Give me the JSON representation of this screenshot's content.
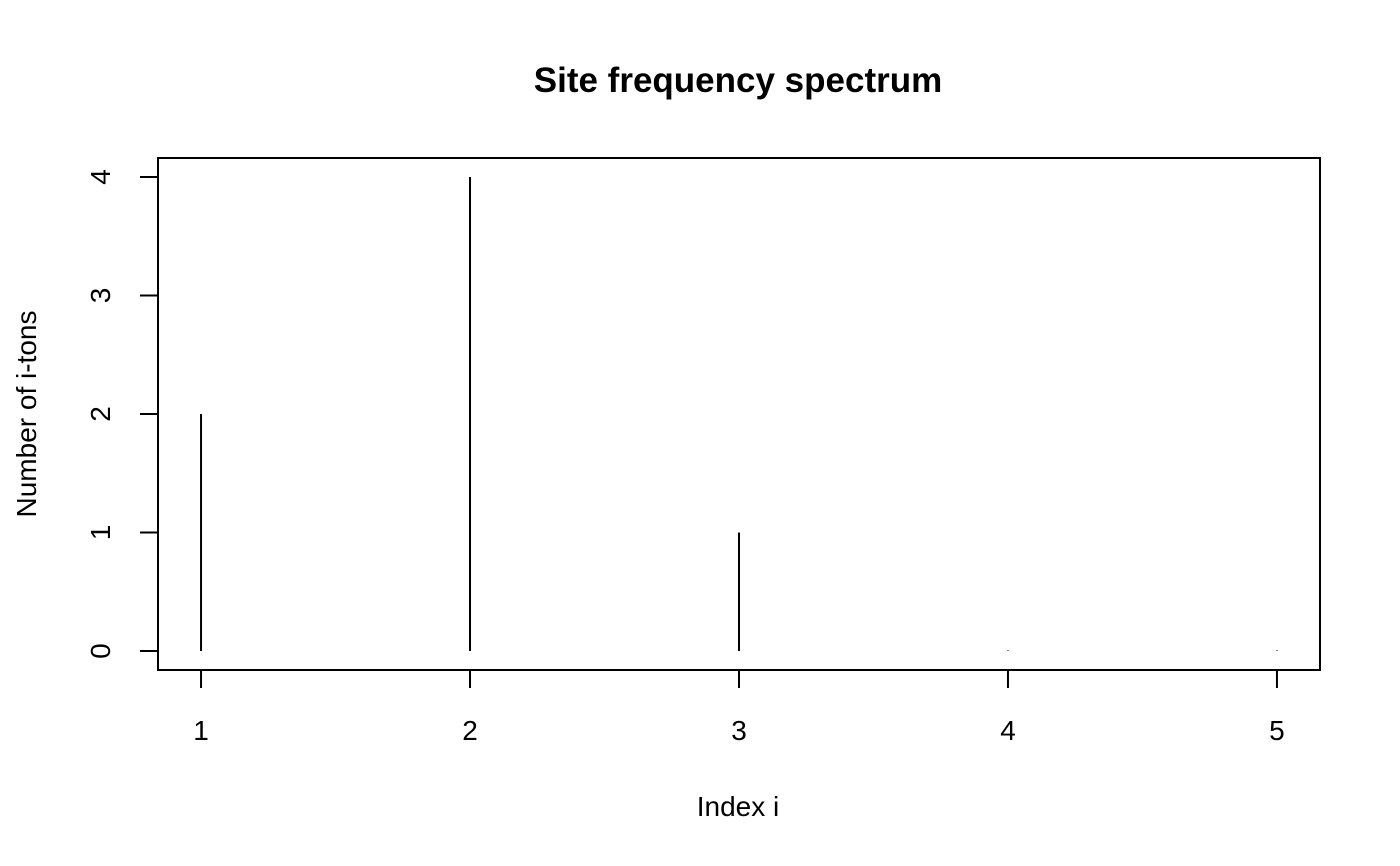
{
  "chart_data": {
    "type": "bar",
    "style": "spike",
    "title": "Site frequency spectrum",
    "xlabel": "Index i",
    "ylabel": "Number of i-tons",
    "x": [
      1,
      2,
      3,
      4,
      5
    ],
    "values": [
      2,
      4,
      1,
      0,
      0
    ],
    "x_ticks": [
      "1",
      "2",
      "3",
      "4",
      "5"
    ],
    "y_ticks": [
      "0",
      "1",
      "2",
      "3",
      "4"
    ],
    "xlim": [
      0.84,
      5.16
    ],
    "ylim": [
      -0.16,
      4.16
    ],
    "grid": false,
    "legend": "none",
    "colors": {
      "mark": "#000000",
      "frame": "#000000",
      "background": "#ffffff"
    }
  }
}
